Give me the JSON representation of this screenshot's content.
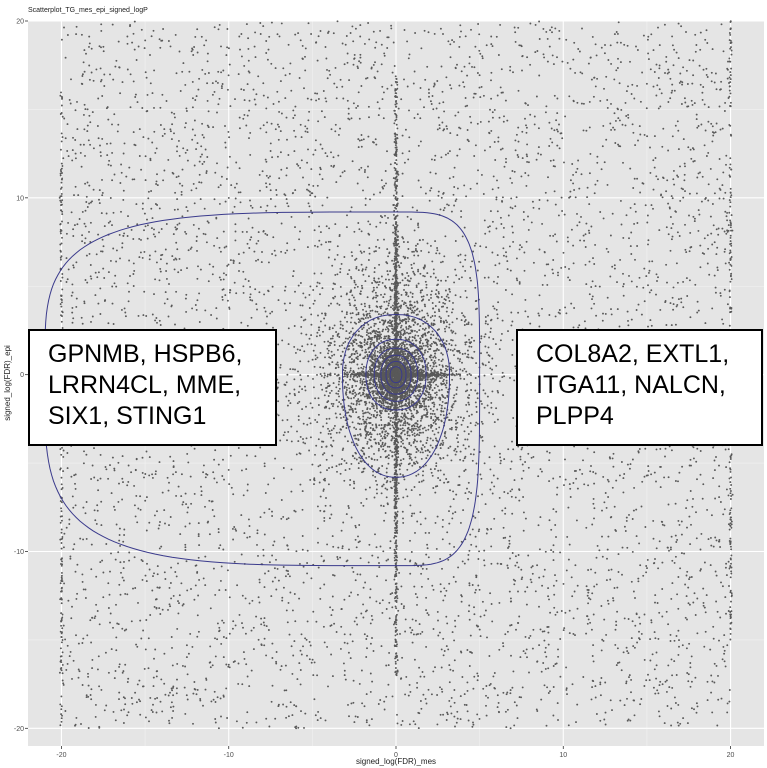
{
  "chart_data": {
    "type": "scatter",
    "title": "Scatterplot_TG_mes_epi_signed_logP",
    "xlabel": "signed_log(FDR)_mes",
    "ylabel": "signed_log(FDR)_epi",
    "xlim": [
      -22,
      22
    ],
    "ylim": [
      -21,
      20
    ],
    "xticks": [
      -20,
      -10,
      0,
      10,
      20
    ],
    "yticks": [
      -20,
      -10,
      0,
      10,
      20
    ],
    "grid": true,
    "background_color": "#e5e5e5",
    "point_color": "#595959",
    "contour_color": "#3a3a8c",
    "series": [
      {
        "name": "",
        "description_points": "approx. 9000 genes, dense at origin, spread uniformly to ±20, vertical line at x=0 and columns at x=±20",
        "sample_points": [
          [
            0,
            0
          ],
          [
            0.3,
            -0.2
          ],
          [
            -0.4,
            0.5
          ],
          [
            1.2,
            0.1
          ],
          [
            -1.5,
            -0.3
          ],
          [
            0,
            5.0
          ],
          [
            0,
            -6.2
          ],
          [
            0,
            12.4
          ],
          [
            0,
            -14.0
          ],
          [
            3.6,
            0.2
          ],
          [
            -4.1,
            -0.1
          ],
          [
            20,
            15.2
          ],
          [
            20,
            -8.4
          ],
          [
            -20,
            10.1
          ],
          [
            -20,
            -12.7
          ],
          [
            8.3,
            14.6
          ],
          [
            -12.5,
            -15.3
          ],
          [
            15.8,
            -4.2
          ],
          [
            -7.7,
            7.9
          ],
          [
            11.2,
            -17.1
          ]
        ]
      }
    ],
    "density_contours": [
      {
        "level": 1,
        "extent_x": [
          -21,
          5
        ],
        "extent_y": [
          -10.8,
          9.2
        ]
      },
      {
        "level": 2,
        "extent_x": [
          -3.2,
          3.2
        ],
        "extent_y": [
          -5.8,
          3.4
        ]
      },
      {
        "level": 3,
        "extent_x": [
          -1.8,
          1.8
        ],
        "extent_y": [
          -2.0,
          2.0
        ]
      },
      {
        "level": 4,
        "extent_x": [
          -1.3,
          1.3
        ],
        "extent_y": [
          -1.5,
          1.5
        ]
      },
      {
        "level": 5,
        "extent_x": [
          -0.9,
          0.9
        ],
        "extent_y": [
          -1.1,
          1.1
        ]
      },
      {
        "level": 6,
        "extent_x": [
          -0.6,
          0.6
        ],
        "extent_y": [
          -0.75,
          0.75
        ]
      },
      {
        "level": 7,
        "extent_x": [
          -0.35,
          0.35
        ],
        "extent_y": [
          -0.45,
          0.45
        ]
      }
    ],
    "annotations": [
      {
        "side": "left",
        "lines": [
          "GPNMB, HSPB6,",
          "LRRN4CL, MME,",
          "SIX1, STING1"
        ]
      },
      {
        "side": "right",
        "lines": [
          "COL8A2, EXTL1,",
          "ITGA11, NALCN,",
          "PLPP4"
        ]
      }
    ]
  }
}
